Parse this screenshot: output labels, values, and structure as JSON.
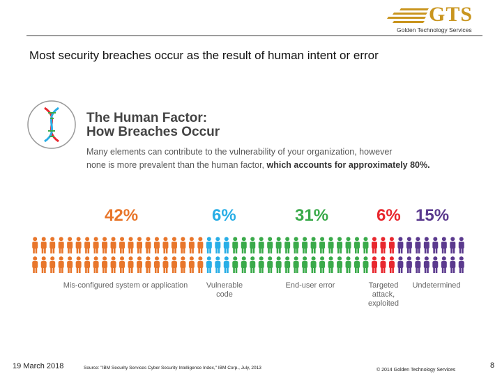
{
  "logo": {
    "name": "GTS",
    "subtitle": "Golden Technology Services",
    "color": "#c9951e"
  },
  "headline": "Most security breaches occur as the result of human intent or error",
  "infographic": {
    "title_line1": "The Human Factor:",
    "title_line2": "How Breaches Occur",
    "desc_line1": "Many elements can contribute to the vulnerability of your organization, however",
    "desc_line2_plain": "none is more prevalent than the human factor,",
    "desc_line2_bold": " which accounts for approximately 80%.",
    "icon": "dna-icon"
  },
  "chart_data": {
    "type": "bar",
    "categories": [
      "Mis-configured system or application",
      "Vulnerable code",
      "End-user error",
      "Targeted attack, exploited",
      "Undetermined"
    ],
    "values": [
      42,
      6,
      31,
      6,
      15
    ],
    "labels": [
      "42%",
      "6%",
      "31%",
      "6%",
      "15%"
    ],
    "colors": [
      "#e8762b",
      "#29aee6",
      "#3aaa4a",
      "#e8272e",
      "#5b3a8e"
    ]
  },
  "category_labels": {
    "misconfigured": "Mis-configured system or application",
    "vulnerable_1": "Vulnerable",
    "vulnerable_2": "code",
    "enduser": "End-user error",
    "targeted_1": "Targeted",
    "targeted_2": "attack,",
    "targeted_3": "exploited",
    "undetermined": "Undetermined"
  },
  "footer": {
    "date": "19 March 2018",
    "source": "Source: \"IBM Security Services Cyber Security Intelligence Index,\" IBM Corp., July, 2013",
    "copyright": "© 2014 Golden Technology Services",
    "page": "8"
  }
}
